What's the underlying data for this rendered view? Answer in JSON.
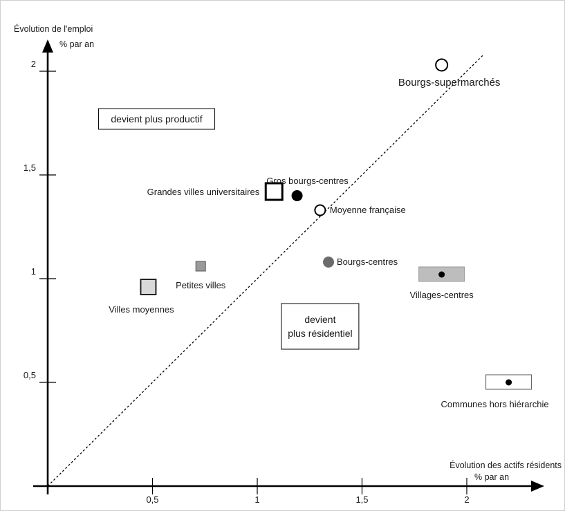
{
  "chart_data": {
    "type": "scatter",
    "xlabel": "Évolution des actifs résidents",
    "xunit": "% par an",
    "ylabel": "Évolution de l'emploi",
    "yunit": "% par an",
    "xlim": [
      0,
      2.3
    ],
    "ylim": [
      0,
      2.25
    ],
    "xticks": [
      {
        "value": 0.5,
        "label": "0,5"
      },
      {
        "value": 1,
        "label": "1"
      },
      {
        "value": 1.5,
        "label": "1,5"
      },
      {
        "value": 2,
        "label": "2"
      }
    ],
    "yticks": [
      {
        "value": 0.5,
        "label": "0,5"
      },
      {
        "value": 1,
        "label": "1"
      },
      {
        "value": 1.5,
        "label": "1,5"
      },
      {
        "value": 2,
        "label": "2"
      }
    ],
    "reference_line": {
      "style": "dashed",
      "from": [
        0,
        0
      ],
      "to": [
        2.08,
        2.08
      ]
    },
    "zones": [
      {
        "text_lines": [
          "devient plus productif"
        ],
        "x": 0.52,
        "y": 1.77
      },
      {
        "text_lines": [
          "devient",
          "plus résidentiel"
        ],
        "x": 1.3,
        "y": 0.77
      }
    ],
    "points": [
      {
        "name": "Bourgs-supermarchés",
        "x": 1.88,
        "y": 2.03,
        "marker": "circle-open",
        "color": "#000000"
      },
      {
        "name": "Gros bourgs-centres",
        "x": 1.19,
        "y": 1.4,
        "marker": "circle-filled",
        "color": "#000000"
      },
      {
        "name": "Grandes villes universitaires",
        "x": 1.08,
        "y": 1.42,
        "marker": "square-open-bold",
        "color": "#000000"
      },
      {
        "name": "Moyenne française",
        "x": 1.3,
        "y": 1.33,
        "marker": "circle-open",
        "color": "#000000"
      },
      {
        "name": "Bourgs-centres",
        "x": 1.34,
        "y": 1.08,
        "marker": "circle-filled",
        "color": "#6b6b6b"
      },
      {
        "name": "Villages-centres",
        "x": 1.88,
        "y": 1.02,
        "marker": "rect-with-dot",
        "color": "#bdbdbd"
      },
      {
        "name": "Petites villes",
        "x": 0.73,
        "y": 1.06,
        "marker": "square-filled",
        "color": "#9a9a9a"
      },
      {
        "name": "Villes moyennes",
        "x": 0.48,
        "y": 0.96,
        "marker": "square-light",
        "color": "#d9d9d9"
      },
      {
        "name": "Communes hors hiérarchie",
        "x": 2.2,
        "y": 0.5,
        "marker": "rect-with-dot",
        "color": "#ffffff"
      }
    ]
  }
}
